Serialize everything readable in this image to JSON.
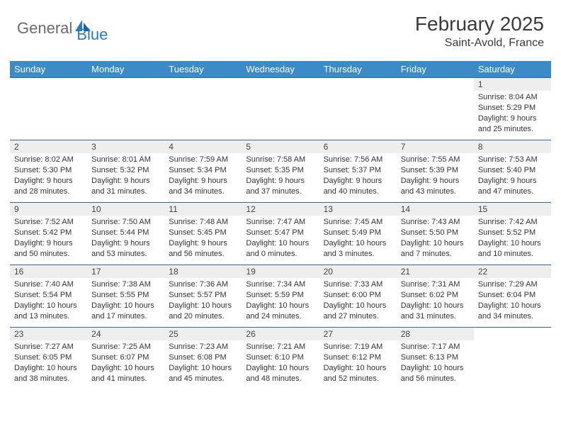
{
  "logo": {
    "text1": "General",
    "text2": "Blue"
  },
  "title": "February 2025",
  "location": "Saint-Avold, France",
  "colors": {
    "header_bg": "#3b8bc9",
    "header_text": "#ffffff",
    "daynum_bg": "#eeeeee",
    "row_border": "#2a6aa0",
    "logo_gray": "#6a6a6a",
    "logo_blue": "#2a7ac0",
    "body_text": "#333333"
  },
  "weekdays": [
    "Sunday",
    "Monday",
    "Tuesday",
    "Wednesday",
    "Thursday",
    "Friday",
    "Saturday"
  ],
  "first_weekday_index": 6,
  "days": [
    {
      "n": 1,
      "sunrise": "8:04 AM",
      "sunset": "5:29 PM",
      "daylight": "9 hours and 25 minutes."
    },
    {
      "n": 2,
      "sunrise": "8:02 AM",
      "sunset": "5:30 PM",
      "daylight": "9 hours and 28 minutes."
    },
    {
      "n": 3,
      "sunrise": "8:01 AM",
      "sunset": "5:32 PM",
      "daylight": "9 hours and 31 minutes."
    },
    {
      "n": 4,
      "sunrise": "7:59 AM",
      "sunset": "5:34 PM",
      "daylight": "9 hours and 34 minutes."
    },
    {
      "n": 5,
      "sunrise": "7:58 AM",
      "sunset": "5:35 PM",
      "daylight": "9 hours and 37 minutes."
    },
    {
      "n": 6,
      "sunrise": "7:56 AM",
      "sunset": "5:37 PM",
      "daylight": "9 hours and 40 minutes."
    },
    {
      "n": 7,
      "sunrise": "7:55 AM",
      "sunset": "5:39 PM",
      "daylight": "9 hours and 43 minutes."
    },
    {
      "n": 8,
      "sunrise": "7:53 AM",
      "sunset": "5:40 PM",
      "daylight": "9 hours and 47 minutes."
    },
    {
      "n": 9,
      "sunrise": "7:52 AM",
      "sunset": "5:42 PM",
      "daylight": "9 hours and 50 minutes."
    },
    {
      "n": 10,
      "sunrise": "7:50 AM",
      "sunset": "5:44 PM",
      "daylight": "9 hours and 53 minutes."
    },
    {
      "n": 11,
      "sunrise": "7:48 AM",
      "sunset": "5:45 PM",
      "daylight": "9 hours and 56 minutes."
    },
    {
      "n": 12,
      "sunrise": "7:47 AM",
      "sunset": "5:47 PM",
      "daylight": "10 hours and 0 minutes."
    },
    {
      "n": 13,
      "sunrise": "7:45 AM",
      "sunset": "5:49 PM",
      "daylight": "10 hours and 3 minutes."
    },
    {
      "n": 14,
      "sunrise": "7:43 AM",
      "sunset": "5:50 PM",
      "daylight": "10 hours and 7 minutes."
    },
    {
      "n": 15,
      "sunrise": "7:42 AM",
      "sunset": "5:52 PM",
      "daylight": "10 hours and 10 minutes."
    },
    {
      "n": 16,
      "sunrise": "7:40 AM",
      "sunset": "5:54 PM",
      "daylight": "10 hours and 13 minutes."
    },
    {
      "n": 17,
      "sunrise": "7:38 AM",
      "sunset": "5:55 PM",
      "daylight": "10 hours and 17 minutes."
    },
    {
      "n": 18,
      "sunrise": "7:36 AM",
      "sunset": "5:57 PM",
      "daylight": "10 hours and 20 minutes."
    },
    {
      "n": 19,
      "sunrise": "7:34 AM",
      "sunset": "5:59 PM",
      "daylight": "10 hours and 24 minutes."
    },
    {
      "n": 20,
      "sunrise": "7:33 AM",
      "sunset": "6:00 PM",
      "daylight": "10 hours and 27 minutes."
    },
    {
      "n": 21,
      "sunrise": "7:31 AM",
      "sunset": "6:02 PM",
      "daylight": "10 hours and 31 minutes."
    },
    {
      "n": 22,
      "sunrise": "7:29 AM",
      "sunset": "6:04 PM",
      "daylight": "10 hours and 34 minutes."
    },
    {
      "n": 23,
      "sunrise": "7:27 AM",
      "sunset": "6:05 PM",
      "daylight": "10 hours and 38 minutes."
    },
    {
      "n": 24,
      "sunrise": "7:25 AM",
      "sunset": "6:07 PM",
      "daylight": "10 hours and 41 minutes."
    },
    {
      "n": 25,
      "sunrise": "7:23 AM",
      "sunset": "6:08 PM",
      "daylight": "10 hours and 45 minutes."
    },
    {
      "n": 26,
      "sunrise": "7:21 AM",
      "sunset": "6:10 PM",
      "daylight": "10 hours and 48 minutes."
    },
    {
      "n": 27,
      "sunrise": "7:19 AM",
      "sunset": "6:12 PM",
      "daylight": "10 hours and 52 minutes."
    },
    {
      "n": 28,
      "sunrise": "7:17 AM",
      "sunset": "6:13 PM",
      "daylight": "10 hours and 56 minutes."
    }
  ],
  "labels": {
    "sunrise": "Sunrise:",
    "sunset": "Sunset:",
    "daylight": "Daylight:"
  }
}
